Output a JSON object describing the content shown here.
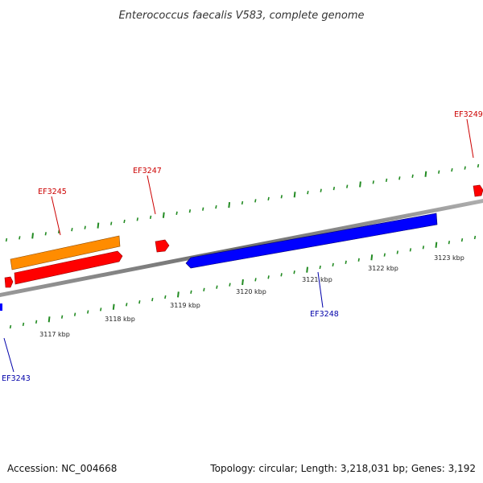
{
  "title": "Enterococcus faecalis V583, complete genome",
  "footer": {
    "accession": "Accession: NC_004668",
    "summary": "Topology: circular; Length: 3,218,031 bp; Genes: 3,192"
  },
  "colors": {
    "backbone": "#808080",
    "ticks": "#228B22",
    "forward_gene": "#ff0000",
    "forward_cds_alt": "#ff8c00",
    "reverse_gene": "#0000ff",
    "forward_label": "#cc0000",
    "reverse_label": "#0000aa"
  },
  "scale": {
    "unit": "kbp",
    "tick_labels": [
      "3117 kbp",
      "3118 kbp",
      "3119 kbp",
      "3120 kbp",
      "3121 kbp",
      "3122 kbp",
      "3123 kbp"
    ]
  },
  "genes": [
    {
      "label": "EF3243",
      "strand": "reverse"
    },
    {
      "label": "EF3245",
      "strand": "forward"
    },
    {
      "label": "EF3247",
      "strand": "forward"
    },
    {
      "label": "EF3248",
      "strand": "reverse"
    },
    {
      "label": "EF3249",
      "strand": "forward"
    }
  ]
}
